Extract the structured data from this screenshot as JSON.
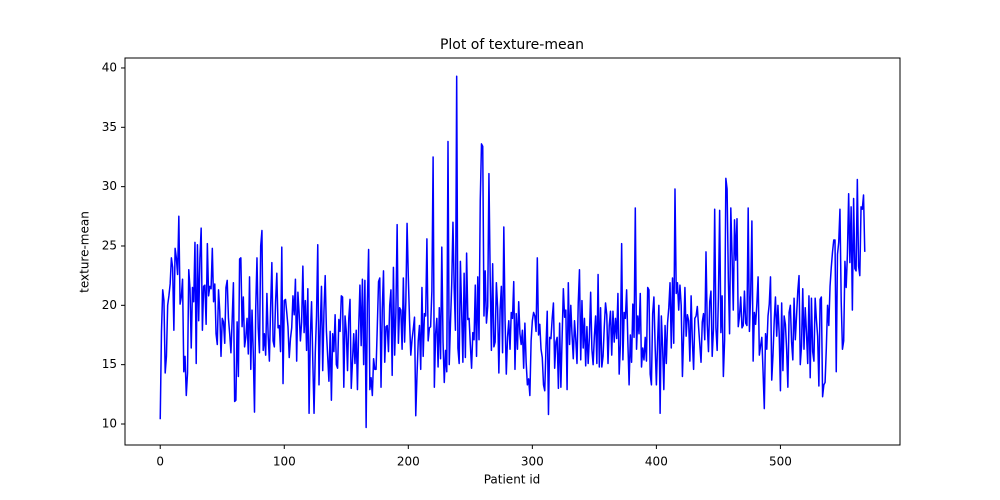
{
  "chart_data": {
    "type": "line",
    "title": "Plot of texture-mean",
    "xlabel": "Patient id",
    "ylabel": "texture-mean",
    "color": "#0000ff",
    "xlim": [
      -28.4,
      596.4
    ],
    "xticks": [
      0,
      100,
      200,
      300,
      400,
      500
    ],
    "ylim": [
      8.23,
      40.84
    ],
    "yticks": [
      10,
      15,
      20,
      25,
      30,
      35,
      40
    ],
    "values": [
      10.4,
      17.8,
      21.3,
      20.4,
      14.3,
      15.7,
      20.0,
      20.8,
      21.8,
      24.0,
      23.2,
      17.9,
      24.8,
      24.0,
      22.6,
      27.5,
      20.1,
      20.7,
      22.2,
      14.4,
      15.7,
      12.4,
      14.3,
      23.0,
      21.4,
      16.4,
      21.5,
      20.3,
      25.3,
      15.1,
      25.1,
      18.7,
      24.0,
      26.5,
      17.9,
      21.6,
      21.7,
      18.4,
      25.2,
      20.8,
      21.6,
      21.4,
      24.8,
      20.3,
      21.8,
      17.6,
      16.7,
      21.3,
      19.5,
      15.7,
      18.9,
      18.6,
      16.8,
      21.5,
      22.1,
      18.9,
      17.6,
      16.0,
      18.8,
      21.9,
      11.9,
      12.0,
      18.6,
      14.0,
      23.9,
      24.0,
      18.2,
      20.7,
      16.5,
      17.3,
      18.9,
      15.9,
      22.4,
      14.6,
      19.6,
      16.0,
      11.0,
      19.8,
      24.0,
      18.1,
      16.0,
      25.0,
      26.3,
      16.2,
      17.6,
      15.8,
      21.0,
      17.5,
      15.3,
      19.8,
      23.6,
      17.0,
      16.5,
      20.3,
      22.7,
      18.1,
      18.3,
      16.1,
      24.9,
      13.4,
      20.4,
      20.5,
      19.4,
      18.2,
      15.6,
      17.2,
      18.1,
      20.8,
      19.2,
      22.2,
      15.3,
      21.1,
      19.3,
      17.0,
      18.6,
      23.3,
      17.7,
      20.4,
      16.2,
      21.4,
      10.9,
      17.4,
      20.3,
      15.3,
      10.9,
      16.0,
      19.1,
      25.1,
      13.3,
      18.0,
      21.6,
      14.5,
      19.5,
      22.5,
      17.8,
      15.7,
      13.6,
      17.8,
      12.0,
      17.6,
      16.1,
      19.2,
      15.0,
      14.7,
      18.8,
      17.8,
      20.8,
      20.7,
      13.1,
      19.1,
      17.8,
      14.5,
      18.9,
      20.5,
      13.0,
      15.3,
      17.6,
      15.1,
      17.9,
      12.9,
      18.1,
      21.7,
      16.6,
      22.2,
      15.0,
      22.1,
      9.7,
      20.2,
      24.7,
      12.9,
      13.9,
      12.4,
      15.5,
      14.6,
      14.6,
      18.2,
      22.0,
      22.3,
      13.1,
      19.6,
      22.9,
      15.2,
      18.2,
      18.3,
      16.1,
      20.0,
      21.3,
      14.1,
      23.2,
      15.8,
      19.4,
      26.8,
      16.8,
      19.8,
      19.6,
      16.3,
      22.3,
      16.9,
      20.3,
      26.9,
      22.4,
      18.7,
      15.8,
      17.1,
      18.0,
      19.0,
      10.7,
      14.1,
      17.0,
      18.3,
      14.6,
      21.5,
      15.7,
      19.3,
      19.1,
      25.6,
      17.0,
      18.1,
      18.2,
      21.2,
      32.5,
      13.1,
      17.6,
      18.9,
      14.8,
      19.8,
      15.5,
      24.9,
      16.9,
      13.5,
      16.2,
      14.4,
      33.8,
      15.0,
      18.5,
      21.8,
      27.0,
      21.4,
      17.9,
      39.3,
      16.4,
      15.1,
      23.7,
      19.5,
      15.2,
      22.7,
      15.6,
      24.4,
      18.8,
      18.9,
      16.7,
      14.7,
      17.7,
      17.1,
      21.7,
      15.7,
      22.4,
      17.1,
      28.8,
      33.6,
      33.4,
      19.1,
      22.9,
      18.5,
      19.9,
      31.1,
      22.5,
      16.2,
      23.5,
      16.5,
      16.9,
      21.9,
      19.8,
      14.3,
      19.6,
      21.6,
      16.0,
      26.6,
      18.8,
      14.2,
      17.3,
      18.7,
      16.3,
      19.4,
      18.9,
      22.0,
      14.6,
      19.3,
      16.3,
      20.3,
      17.6,
      16.7,
      17.9,
      14.7,
      18.5,
      15.2,
      13.3,
      13.8,
      12.4,
      17.0,
      18.7,
      19.4,
      19.1,
      17.8,
      24.0,
      17.5,
      18.4,
      16.3,
      15.6,
      13.3,
      12.8,
      16.5,
      19.5,
      10.8,
      17.3,
      17.2,
      18.9,
      20.2,
      14.7,
      16.9,
      17.3,
      13.0,
      18.5,
      13.1,
      17.3,
      21.4,
      19.0,
      19.6,
      12.9,
      21.9,
      16.7,
      20.0,
      17.5,
      15.5,
      18.7,
      17.1,
      15.1,
      20.2,
      23.0,
      15.4,
      20.4,
      16.4,
      18.9,
      14.9,
      18.2,
      15.1,
      17.3,
      21.1,
      16.3,
      15.0,
      17.4,
      19.1,
      15.1,
      22.6,
      14.8,
      19.8,
      14.8,
      15.7,
      18.2,
      20.2,
      19.2,
      15.1,
      18.3,
      19.5,
      15.8,
      19.5,
      16.9,
      18.9,
      17.2,
      21.0,
      14.2,
      16.7,
      25.2,
      15.4,
      19.4,
      18.9,
      21.3,
      16.9,
      13.3,
      17.5,
      15.2,
      20.1,
      17.3,
      28.2,
      16.3,
      19.1,
      17.6,
      21.0,
      14.8,
      16.4,
      15.4,
      17.3,
      15.3,
      21.5,
      21.3,
      14.2,
      13.3,
      19.3,
      20.7,
      16.5,
      13.3,
      17.0,
      20.0,
      10.9,
      19.1,
      16.5,
      12.9,
      18.3,
      15.1,
      18.5,
      19.8,
      21.9,
      16.4,
      22.3,
      16.8,
      29.8,
      21.0,
      21.9,
      19.6,
      21.7,
      20.0,
      14.0,
      17.6,
      21.5,
      17.4,
      19.2,
      18.7,
      15.3,
      20.8,
      17.0,
      14.6,
      18.9,
      19.1,
      19.9,
      18.2,
      16.7,
      15.2,
      18.6,
      19.3,
      17.1,
      24.5,
      18.4,
      16.1,
      20.3,
      21.2,
      15.7,
      18.0,
      28.1,
      18.1,
      16.2,
      20.7,
      28.0,
      17.7,
      20.8,
      14.0,
      17.1,
      30.7,
      29.8,
      22.3,
      17.6,
      28.2,
      24.2,
      19.6,
      27.2,
      23.8,
      27.3,
      18.2,
      19.1,
      20.7,
      18.1,
      18.3,
      21.2,
      18.5,
      18.3,
      28.2,
      17.8,
      20.9,
      27.1,
      15.3,
      19.4,
      18.4,
      20.1,
      22.4,
      15.8,
      16.6,
      17.3,
      14.4,
      11.3,
      17.6,
      16.3,
      19.1,
      20.1,
      22.4,
      13.7,
      15.8,
      18.7,
      20.7,
      17.4,
      20.0,
      17.6,
      12.8,
      20.2,
      14.5,
      19.1,
      18.4,
      16.3,
      13.1,
      19.4,
      20.0,
      16.9,
      15.4,
      20.6,
      17.1,
      19.1,
      21.2,
      22.5,
      15.0,
      16.6,
      21.4,
      16.3,
      19.8,
      17.7,
      15.1,
      20.8,
      13.9,
      20.6,
      16.1,
      15.3,
      20.6,
      18.8,
      17.4,
      13.2,
      20.5,
      20.7,
      12.3,
      13.3,
      13.5,
      16.4,
      20.0,
      18.3,
      21.6,
      23.2,
      24.5,
      25.5,
      25.5,
      14.4,
      24.3,
      25.3,
      28.1,
      20.3,
      16.3,
      17.0,
      23.7,
      21.5,
      24.3,
      29.4,
      23.6,
      28.3,
      19.6,
      29.0,
      23.1,
      22.9,
      30.6,
      23.3,
      22.5,
      28.3,
      28.1,
      29.3,
      24.5
    ]
  }
}
